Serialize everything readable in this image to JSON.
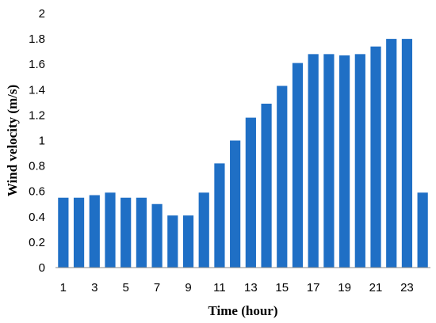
{
  "chart_data": {
    "type": "bar",
    "categories": [
      "1",
      "2",
      "3",
      "4",
      "5",
      "6",
      "7",
      "8",
      "9",
      "10",
      "11",
      "12",
      "13",
      "14",
      "15",
      "16",
      "17",
      "18",
      "19",
      "20",
      "21",
      "22",
      "23",
      "24"
    ],
    "x_tick_labels": [
      "1",
      "3",
      "5",
      "7",
      "9",
      "11",
      "13",
      "15",
      "17",
      "19",
      "21",
      "23"
    ],
    "values": [
      0.55,
      0.55,
      0.57,
      0.59,
      0.55,
      0.55,
      0.5,
      0.41,
      0.41,
      0.59,
      0.82,
      1.0,
      1.18,
      1.29,
      1.43,
      1.61,
      1.68,
      1.68,
      1.67,
      1.68,
      1.74,
      1.8,
      1.8,
      0.59
    ],
    "title": "",
    "xlabel": "Time (hour)",
    "ylabel": "Wind velocity (m/s)",
    "ylim": [
      0,
      2
    ],
    "y_ticks": [
      "0",
      "0.2",
      "0.4",
      "0.6",
      "0.8",
      "1",
      "1.2",
      "1.4",
      "1.6",
      "1.8",
      "2"
    ],
    "grid": false,
    "bar_color": "#1f6fc5"
  }
}
